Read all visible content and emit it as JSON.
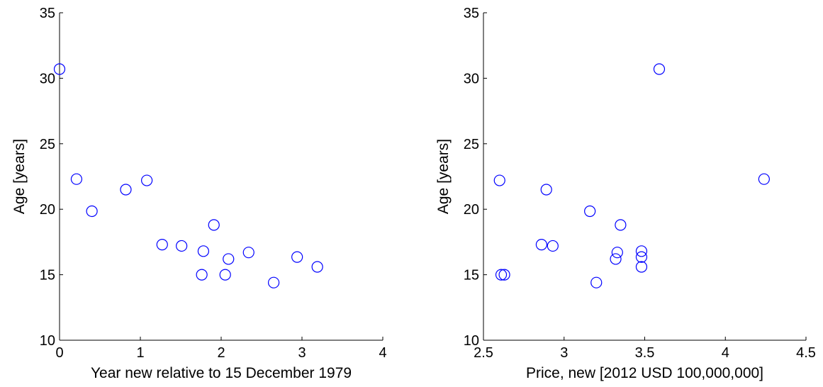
{
  "chart_data": [
    {
      "type": "scatter",
      "title": "",
      "xlabel": "Year new relative to 15 December 1979",
      "ylabel": "Age [years]",
      "xlim": [
        0,
        4
      ],
      "ylim": [
        10,
        35
      ],
      "xticks": [
        "0",
        "1",
        "2",
        "3",
        "4"
      ],
      "yticks": [
        "10",
        "15",
        "20",
        "25",
        "30",
        "35"
      ],
      "grid": false,
      "marker": "open-circle",
      "series": [
        {
          "color": "#0000ff",
          "points": [
            {
              "x": 0.0,
              "y": 30.7
            },
            {
              "x": 0.21,
              "y": 22.3
            },
            {
              "x": 0.4,
              "y": 19.85
            },
            {
              "x": 0.82,
              "y": 21.5
            },
            {
              "x": 1.08,
              "y": 22.2
            },
            {
              "x": 1.27,
              "y": 17.3
            },
            {
              "x": 1.51,
              "y": 17.2
            },
            {
              "x": 1.76,
              "y": 15.0
            },
            {
              "x": 1.78,
              "y": 16.8
            },
            {
              "x": 1.91,
              "y": 18.8
            },
            {
              "x": 2.05,
              "y": 15.0
            },
            {
              "x": 2.09,
              "y": 16.2
            },
            {
              "x": 2.34,
              "y": 16.7
            },
            {
              "x": 2.65,
              "y": 14.4
            },
            {
              "x": 2.94,
              "y": 16.35
            },
            {
              "x": 3.19,
              "y": 15.6
            }
          ]
        }
      ]
    },
    {
      "type": "scatter",
      "title": "",
      "xlabel": "Price, new [2012 USD 100,000,000]",
      "ylabel": "Age [years]",
      "xlim": [
        2.5,
        4.5
      ],
      "ylim": [
        10,
        35
      ],
      "xticks": [
        "2.5",
        "3",
        "3.5",
        "4",
        "4.5"
      ],
      "yticks": [
        "10",
        "15",
        "20",
        "25",
        "30",
        "35"
      ],
      "grid": false,
      "marker": "open-circle",
      "series": [
        {
          "color": "#0000ff",
          "points": [
            {
              "x": 2.6,
              "y": 22.2
            },
            {
              "x": 2.61,
              "y": 15.0
            },
            {
              "x": 2.63,
              "y": 15.0
            },
            {
              "x": 2.86,
              "y": 17.3
            },
            {
              "x": 2.89,
              "y": 21.5
            },
            {
              "x": 2.93,
              "y": 17.2
            },
            {
              "x": 3.16,
              "y": 19.85
            },
            {
              "x": 3.2,
              "y": 14.4
            },
            {
              "x": 3.32,
              "y": 16.2
            },
            {
              "x": 3.33,
              "y": 16.7
            },
            {
              "x": 3.35,
              "y": 18.8
            },
            {
              "x": 3.48,
              "y": 16.8
            },
            {
              "x": 3.48,
              "y": 16.35
            },
            {
              "x": 3.48,
              "y": 15.6
            },
            {
              "x": 3.59,
              "y": 30.7
            },
            {
              "x": 4.24,
              "y": 22.3
            }
          ]
        }
      ]
    }
  ]
}
